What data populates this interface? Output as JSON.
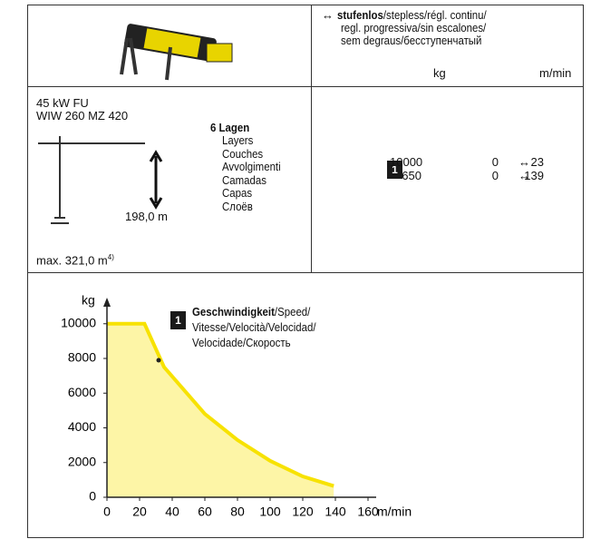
{
  "header": {
    "mode": {
      "arrow": "↔",
      "bold": "stufenlos",
      "text": "/stepless/régl. continu/",
      "lines": [
        "regl. progressiva/sin escalones/",
        "sem degraus/бесступенчатый"
      ]
    },
    "units": [
      "kg",
      "m/min"
    ]
  },
  "drive": {
    "power": "45 kW FU",
    "model": "WIW 260 MZ 420",
    "height": "198,0 m",
    "max": "max. 321,0 m",
    "max_note": "4)",
    "layers_title": "6 Lagen",
    "layers": [
      "Layers",
      "Couches",
      "Avvolgimenti",
      "Camadas",
      "Capas",
      "Слоёв"
    ]
  },
  "speeds": {
    "gear": "1",
    "rows": [
      [
        "10000",
        "0",
        "↔",
        "23"
      ],
      [
        "650",
        "0",
        "↔",
        "139"
      ]
    ]
  },
  "chart_data": {
    "type": "area",
    "x": [
      0,
      23,
      35,
      60,
      80,
      100,
      120,
      139
    ],
    "values": [
      10000,
      10000,
      7500,
      4800,
      3300,
      2100,
      1200,
      650
    ],
    "color": "#f7e200",
    "fill": "#fdf5a6",
    "xlim": [
      0,
      165
    ],
    "ylim": [
      0,
      11400
    ],
    "xticks": [
      0,
      20,
      40,
      60,
      80,
      100,
      120,
      140,
      160
    ],
    "yticks": [
      0,
      2000,
      4000,
      6000,
      8000,
      10000
    ],
    "y_label": "kg",
    "x_label": "m/min",
    "marker": "1",
    "legend": {
      "bold": "Geschwindigkeit",
      "text": "/Speed/",
      "lines": [
        "Vitesse/Velocità/Velocidad/",
        "Velocidade/Скорость"
      ]
    }
  }
}
